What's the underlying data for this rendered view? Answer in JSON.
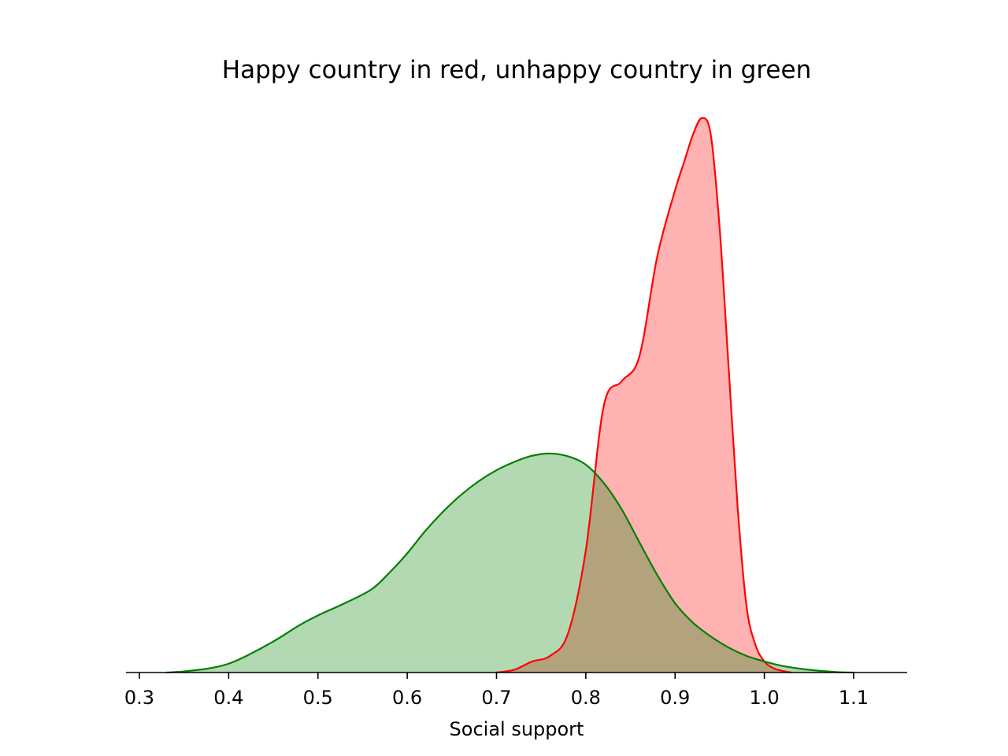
{
  "chart_data": {
    "type": "area",
    "title": "Happy country in red, unhappy country in green",
    "xlabel": "Social support",
    "ylabel": "",
    "xlim": [
      0.285,
      1.16
    ],
    "ylim": [
      0,
      1.0
    ],
    "x_ticks": [
      0.3,
      0.4,
      0.5,
      0.6,
      0.7,
      0.8,
      0.9,
      1.0,
      1.1
    ],
    "x_tick_labels": [
      "0.3",
      "0.4",
      "0.5",
      "0.6",
      "0.7",
      "0.8",
      "0.9",
      "1.0",
      "1.1"
    ],
    "y_axis_visible": false,
    "grid": false,
    "series": [
      {
        "color": "#ff0000",
        "fill": "#ffb0b0",
        "x": [
          0.7,
          0.72,
          0.74,
          0.76,
          0.78,
          0.8,
          0.82,
          0.84,
          0.86,
          0.88,
          0.9,
          0.91,
          0.92,
          0.93,
          0.94,
          0.95,
          0.96,
          0.97,
          0.98,
          0.99,
          1.0,
          1.01,
          1.02,
          1.03
        ],
        "y": [
          0.0,
          0.005,
          0.02,
          0.03,
          0.07,
          0.22,
          0.48,
          0.525,
          0.57,
          0.75,
          0.87,
          0.92,
          0.97,
          1.0,
          0.97,
          0.8,
          0.55,
          0.3,
          0.12,
          0.05,
          0.02,
          0.008,
          0.003,
          0.0
        ]
      },
      {
        "color": "#008000",
        "fill": "#b2d8b2",
        "x": [
          0.33,
          0.35,
          0.38,
          0.4,
          0.42,
          0.45,
          0.48,
          0.5,
          0.53,
          0.56,
          0.58,
          0.6,
          0.62,
          0.64,
          0.66,
          0.68,
          0.7,
          0.72,
          0.74,
          0.76,
          0.78,
          0.8,
          0.82,
          0.84,
          0.86,
          0.88,
          0.9,
          0.92,
          0.94,
          0.96,
          0.98,
          1.0,
          1.02,
          1.05,
          1.08,
          1.1
        ],
        "y": [
          0.0,
          0.002,
          0.008,
          0.016,
          0.03,
          0.056,
          0.086,
          0.103,
          0.125,
          0.15,
          0.18,
          0.215,
          0.255,
          0.29,
          0.32,
          0.345,
          0.365,
          0.38,
          0.391,
          0.395,
          0.39,
          0.375,
          0.342,
          0.295,
          0.235,
          0.176,
          0.125,
          0.09,
          0.065,
          0.045,
          0.03,
          0.02,
          0.012,
          0.005,
          0.001,
          0.0
        ]
      }
    ]
  }
}
